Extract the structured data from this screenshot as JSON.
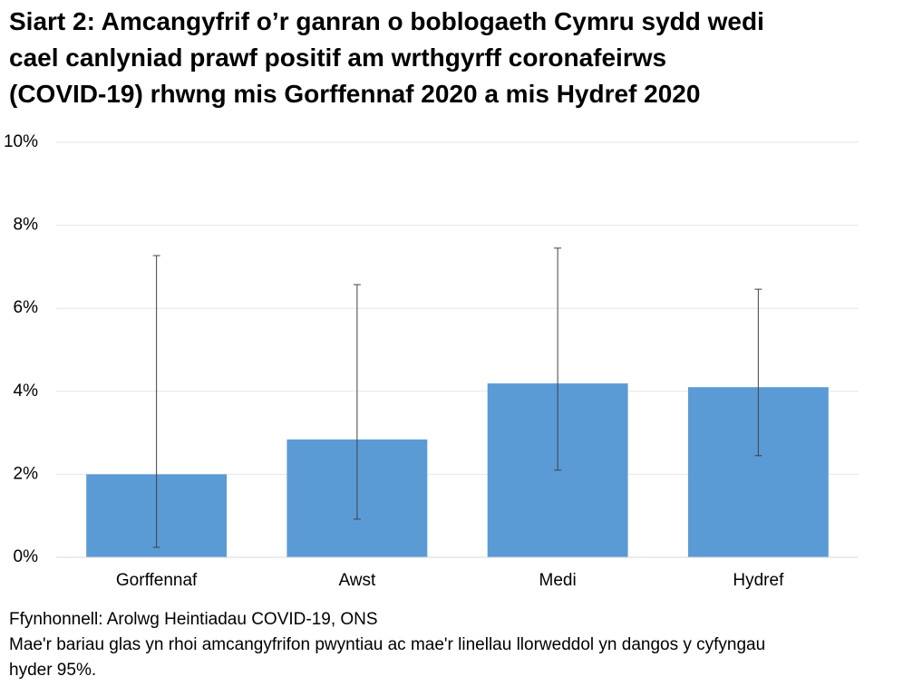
{
  "chart_data": {
    "type": "bar",
    "title": [
      "Siart 2: Amcangyfrif o’r ganran o boblogaeth Cymru sydd wedi",
      "cael canlyniad prawf positif am wrthgyrff coronafeirws",
      "(COVID-19) rhwng mis Gorffennaf 2020 a mis Hydref 2020"
    ],
    "categories": [
      "Gorffennaf",
      "Awst",
      "Medi",
      "Hydref"
    ],
    "values": [
      2.0,
      2.84,
      4.19,
      4.1
    ],
    "ci_lower": [
      0.24,
      0.92,
      2.1,
      2.45
    ],
    "ci_upper": [
      7.27,
      6.57,
      7.45,
      6.46
    ],
    "color": "#5b9bd5",
    "ylim": [
      0,
      10
    ],
    "yticks": [
      {
        "value": 0,
        "label": "0%"
      },
      {
        "value": 2,
        "label": "2%"
      },
      {
        "value": 4,
        "label": "4%"
      },
      {
        "value": 6,
        "label": "6%"
      },
      {
        "value": 8,
        "label": "8%"
      },
      {
        "value": 10,
        "label": "10%"
      }
    ],
    "grid": true,
    "source": "Ffynhonnell: Arolwg Heintiadau COVID-19, ONS",
    "note": "Mae'r bariau glas yn rhoi amcangyfrifon pwyntiau ac mae'r linellau llorweddol yn dangos y cyfyngau hyder 95%."
  }
}
